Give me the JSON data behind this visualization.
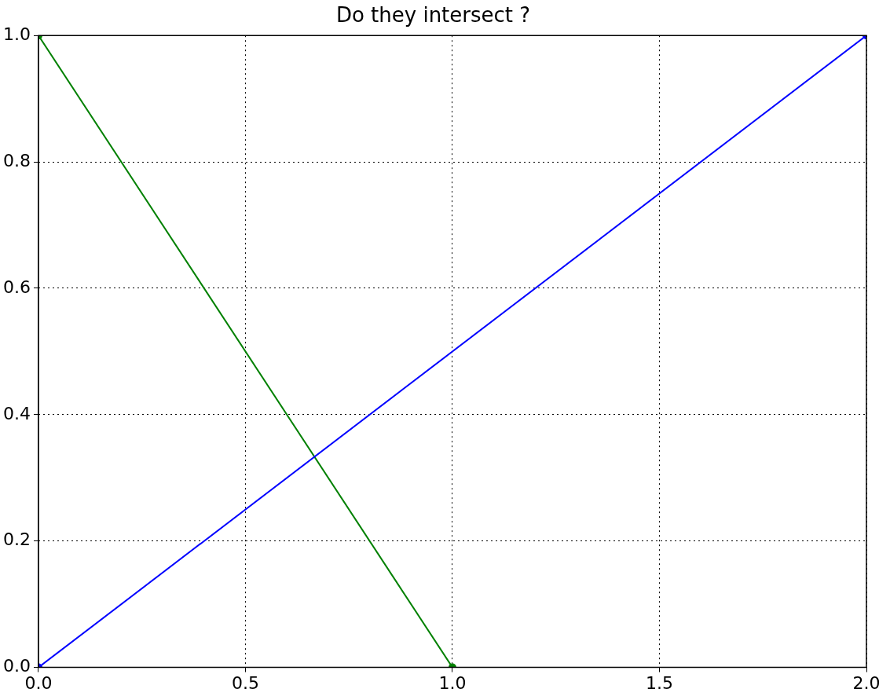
{
  "chart_data": {
    "type": "line",
    "title": "Do they intersect ?",
    "series": [
      {
        "color": "#0000ff",
        "x": [
          0,
          2
        ],
        "values": [
          0,
          1
        ]
      },
      {
        "color": "#008000",
        "x": [
          0,
          1
        ],
        "values": [
          1,
          0
        ]
      }
    ],
    "xlim": [
      0,
      2
    ],
    "xticks": [
      {
        "value": 0,
        "label": "0.0"
      },
      {
        "value": 0.5,
        "label": "0.5"
      },
      {
        "value": 1,
        "label": "1.0"
      },
      {
        "value": 1.5,
        "label": "1.5"
      },
      {
        "value": 2,
        "label": "2.0"
      }
    ],
    "ylim": [
      0,
      1
    ],
    "yticks": [
      {
        "value": 0,
        "label": "0.0"
      },
      {
        "value": 0.2,
        "label": "0.2"
      },
      {
        "value": 0.4,
        "label": "0.4"
      },
      {
        "value": 0.6,
        "label": "0.6"
      },
      {
        "value": 0.8,
        "label": "0.8"
      },
      {
        "value": 1,
        "label": "1.0"
      }
    ],
    "grid": true,
    "legend": false,
    "marker": "circle",
    "line_style": "solid"
  }
}
